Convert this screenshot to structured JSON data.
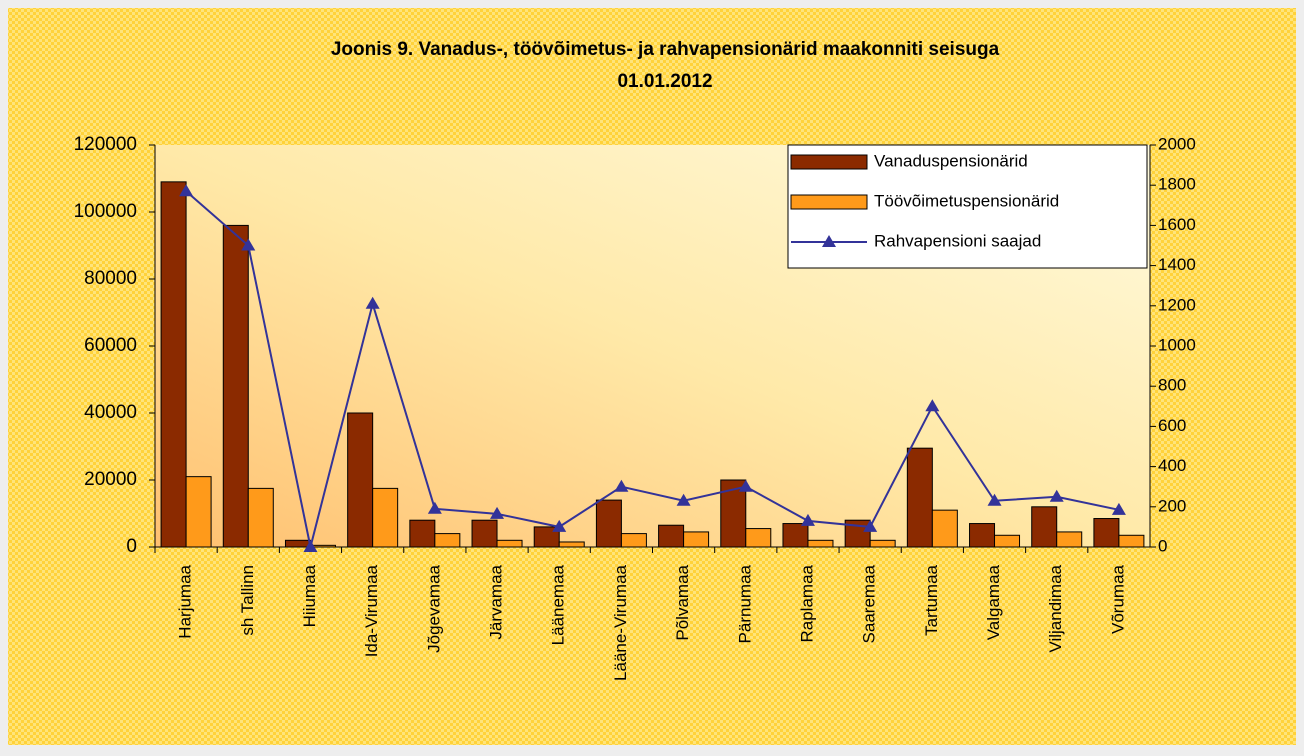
{
  "chart_data": {
    "type": "bar-line",
    "title": [
      "Joonis 9. Vanadus-, töövõimetus- ja rahvapensionärid maakonniti seisuga",
      "01.01.2012"
    ],
    "categories": [
      "Harjumaa",
      "sh Tallinn",
      "Hiiumaa",
      "Ida-Virumaa",
      "Jõgevamaa",
      "Järvamaa",
      "Läänemaa",
      "Lääne-Virumaa",
      "Põlvamaa",
      "Pärnumaa",
      "Raplamaa",
      "Saaremaa",
      "Tartumaa",
      "Valgamaa",
      "Viljandimaa",
      "Võrumaa"
    ],
    "series": [
      {
        "name": "Vanaduspensionärid",
        "color": "#8b2a00",
        "kind": "bar",
        "values": [
          109000,
          96000,
          2000,
          40000,
          8000,
          8000,
          6000,
          14000,
          6500,
          20000,
          7000,
          8000,
          29500,
          7000,
          12000,
          8500
        ]
      },
      {
        "name": "Töövõimetuspensionärid",
        "color": "#ff9a1a",
        "kind": "bar",
        "values": [
          21000,
          17500,
          500,
          17500,
          4000,
          2000,
          1500,
          4000,
          4500,
          5500,
          2000,
          2000,
          11000,
          3500,
          4500,
          3500
        ]
      },
      {
        "name": "Rahvapensioni saajad",
        "color": "#333399",
        "kind": "line",
        "axis": "y2",
        "values": [
          1770,
          1500,
          0,
          1210,
          190,
          165,
          100,
          300,
          230,
          300,
          130,
          100,
          700,
          230,
          250,
          185
        ]
      }
    ],
    "ylim": [
      0,
      120000
    ],
    "yticks": [
      0,
      20000,
      40000,
      60000,
      80000,
      100000,
      120000
    ],
    "y2lim": [
      0,
      2000
    ],
    "y2ticks": [
      0,
      200,
      400,
      600,
      800,
      1000,
      1200,
      1400,
      1600,
      1800,
      2000
    ],
    "legend": "top-right"
  }
}
